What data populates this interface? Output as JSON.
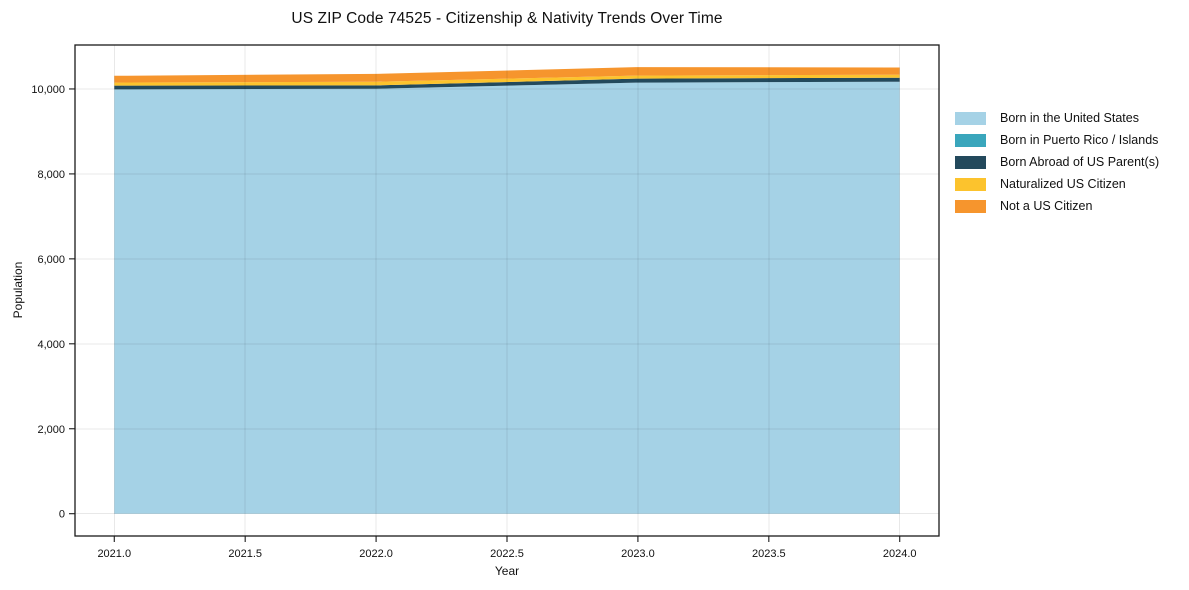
{
  "chart_data": {
    "type": "area",
    "stacked": true,
    "title": "US ZIP Code 74525 - Citizenship & Nativity Trends Over Time",
    "xlabel": "Year",
    "ylabel": "Population",
    "x": [
      2021,
      2022,
      2023,
      2024
    ],
    "series": [
      {
        "name": "Born in the United States",
        "color": "#a5d2e6",
        "values": [
          9990,
          10005,
          10150,
          10170
        ]
      },
      {
        "name": "Born in Puerto Rico / Islands",
        "color": "#3aa6bc",
        "values": [
          0,
          0,
          0,
          0
        ]
      },
      {
        "name": "Born Abroad of US Parent(s)",
        "color": "#23495c",
        "values": [
          90,
          80,
          95,
          95
        ]
      },
      {
        "name": "Naturalized US Citizen",
        "color": "#fcc32d",
        "values": [
          70,
          85,
          70,
          70
        ]
      },
      {
        "name": "Not a US Citizen",
        "color": "#f6952d",
        "values": [
          160,
          185,
          200,
          170
        ]
      }
    ],
    "xlim": [
      2020.85,
      2024.15
    ],
    "ylim": [
      -525,
      11035
    ],
    "xticks": {
      "values": [
        2021,
        2021.5,
        2022,
        2022.5,
        2023,
        2023.5,
        2024
      ],
      "labels": [
        "2021.0",
        "2021.5",
        "2022.0",
        "2022.5",
        "2023.0",
        "2023.5",
        "2024.0"
      ]
    },
    "yticks": {
      "values": [
        0,
        2000,
        4000,
        6000,
        8000,
        10000
      ],
      "labels": [
        "0",
        "2,000",
        "4,000",
        "6,000",
        "8,000",
        "10,000"
      ]
    },
    "grid": true,
    "legend_position": "right-outside",
    "style": {
      "background": "#ffffff",
      "spine_color": "#1a1a1a",
      "grid_color": "rgba(0,0,0,0.09)",
      "tick_color": "#1a1a1a",
      "text_color": "#111111"
    }
  }
}
